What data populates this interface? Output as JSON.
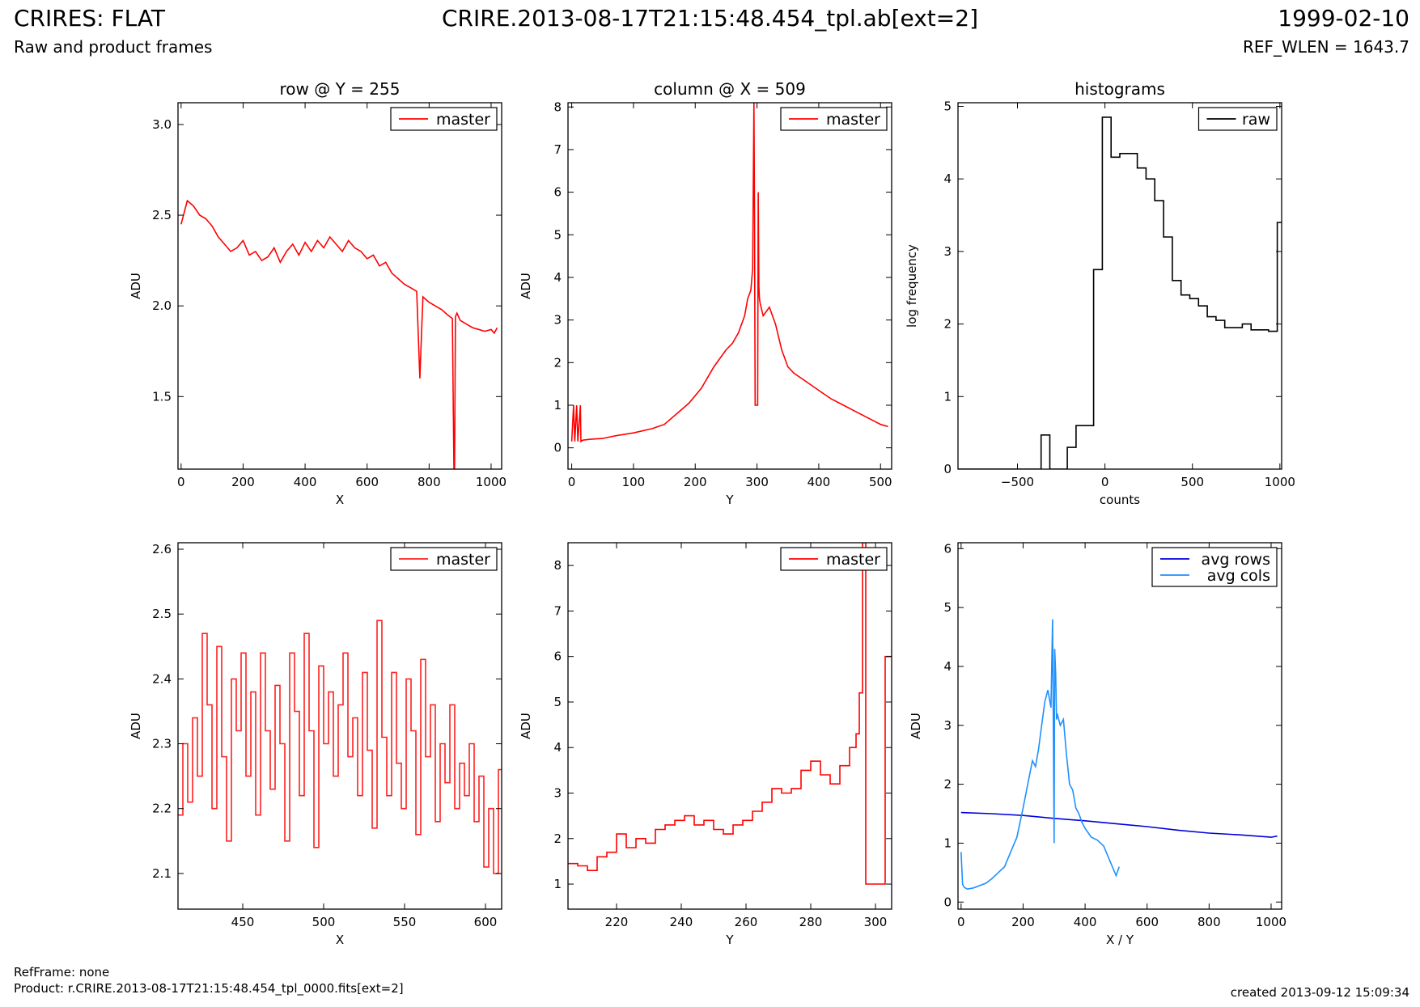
{
  "header": {
    "left_title": "CRIRES: FLAT",
    "left_subtitle": "Raw and product frames",
    "center_title": "CRIRE.2013-08-17T21:15:48.454_tpl.ab[ext=2]",
    "right_title": "1999-02-10",
    "right_subtitle": "REF_WLEN = 1643.7"
  },
  "footer": {
    "refframe": "RefFrame: none",
    "product": "Product: r.CRIRE.2013-08-17T21:15:48.454_tpl_0000.fits[ext=2]",
    "created": "created 2013-09-12 15:09:34"
  },
  "chart_data": [
    {
      "id": "row-full",
      "type": "line",
      "title": "row @ Y = 255",
      "xlabel": "X",
      "ylabel": "ADU",
      "xlim": [
        -10,
        1034
      ],
      "ylim": [
        1.1,
        3.12
      ],
      "xticks": [
        0,
        200,
        400,
        600,
        800,
        1000
      ],
      "yticks": [
        1.5,
        2.0,
        2.5,
        3.0
      ],
      "ytick_labels": [
        "1.5",
        "2.0",
        "2.5",
        "3.0"
      ],
      "legend_position": "top-right",
      "series": [
        {
          "name": "master",
          "color": "#ff0000",
          "x": [
            0,
            20,
            40,
            60,
            80,
            100,
            120,
            140,
            160,
            180,
            200,
            220,
            240,
            260,
            280,
            300,
            320,
            340,
            360,
            380,
            400,
            420,
            440,
            460,
            480,
            500,
            520,
            540,
            560,
            580,
            600,
            620,
            640,
            660,
            680,
            700,
            720,
            740,
            760,
            770,
            780,
            800,
            820,
            840,
            860,
            875,
            880,
            882,
            885,
            890,
            900,
            920,
            940,
            960,
            980,
            1000,
            1010,
            1020
          ],
          "y": [
            2.45,
            2.58,
            2.55,
            2.5,
            2.48,
            2.44,
            2.38,
            2.34,
            2.3,
            2.32,
            2.36,
            2.28,
            2.3,
            2.25,
            2.27,
            2.32,
            2.24,
            2.3,
            2.34,
            2.28,
            2.35,
            2.3,
            2.36,
            2.32,
            2.38,
            2.34,
            2.3,
            2.36,
            2.32,
            2.3,
            2.26,
            2.28,
            2.22,
            2.24,
            2.18,
            2.15,
            2.12,
            2.1,
            2.08,
            1.6,
            2.05,
            2.02,
            2.0,
            1.98,
            1.95,
            1.93,
            1.1,
            1.1,
            1.94,
            1.96,
            1.92,
            1.9,
            1.88,
            1.87,
            1.86,
            1.87,
            1.85,
            1.88
          ]
        }
      ]
    },
    {
      "id": "col-full",
      "type": "line",
      "title": "column @ X = 509",
      "xlabel": "Y",
      "ylabel": "ADU",
      "xlim": [
        -6,
        518
      ],
      "ylim": [
        -0.5,
        8.1
      ],
      "xticks": [
        0,
        100,
        200,
        300,
        400,
        500
      ],
      "yticks": [
        0,
        1,
        2,
        3,
        4,
        5,
        6,
        7,
        8
      ],
      "legend_position": "top-right",
      "series": [
        {
          "name": "master",
          "color": "#ff0000",
          "x": [
            0,
            3,
            5,
            8,
            10,
            14,
            15,
            18,
            30,
            50,
            70,
            100,
            130,
            150,
            170,
            190,
            210,
            230,
            250,
            260,
            270,
            280,
            285,
            290,
            293,
            295,
            296,
            297,
            298,
            299,
            300,
            301,
            302,
            303,
            304,
            305,
            310,
            320,
            330,
            340,
            350,
            360,
            380,
            400,
            420,
            440,
            460,
            480,
            500,
            512
          ],
          "y": [
            0.15,
            1.0,
            0.15,
            1.0,
            0.15,
            1.0,
            0.15,
            0.18,
            0.2,
            0.22,
            0.28,
            0.35,
            0.45,
            0.55,
            0.8,
            1.05,
            1.4,
            1.9,
            2.3,
            2.45,
            2.7,
            3.1,
            3.5,
            3.7,
            4.2,
            8.1,
            5.5,
            1.0,
            1.0,
            1.0,
            1.0,
            1.0,
            6.0,
            3.8,
            3.5,
            3.4,
            3.1,
            3.3,
            2.9,
            2.3,
            1.9,
            1.75,
            1.55,
            1.35,
            1.15,
            1.0,
            0.85,
            0.7,
            0.55,
            0.5
          ]
        }
      ]
    },
    {
      "id": "hist",
      "type": "line",
      "title": "histograms",
      "xlabel": "counts",
      "ylabel": "log frequency",
      "xlim": [
        -840,
        1010
      ],
      "ylim": [
        0,
        5.05
      ],
      "xticks": [
        -500,
        0,
        500,
        1000
      ],
      "xtick_labels": [
        "−500",
        "0",
        "500",
        "1000"
      ],
      "yticks": [
        0,
        1,
        2,
        3,
        4,
        5
      ],
      "legend_position": "top-right",
      "series": [
        {
          "name": "raw",
          "color": "#000000",
          "step": true,
          "x": [
            -840,
            -365,
            -315,
            -265,
            -215,
            -165,
            -65,
            -15,
            35,
            85,
            135,
            185,
            235,
            285,
            335,
            385,
            435,
            485,
            535,
            585,
            635,
            685,
            735,
            785,
            835,
            885,
            935,
            985,
            1010
          ],
          "y": [
            0,
            0.47,
            0,
            0,
            0.3,
            0.6,
            2.75,
            4.85,
            4.3,
            4.35,
            4.35,
            4.15,
            4.0,
            3.7,
            3.2,
            2.6,
            2.4,
            2.35,
            2.25,
            2.1,
            2.05,
            1.95,
            1.95,
            2.0,
            1.92,
            1.92,
            1.9,
            3.4,
            3.4
          ]
        }
      ]
    },
    {
      "id": "row-zoom",
      "type": "line",
      "title": "",
      "xlabel": "X",
      "ylabel": "ADU",
      "xlim": [
        410,
        610
      ],
      "ylim": [
        2.045,
        2.61
      ],
      "xticks": [
        450,
        500,
        550,
        600
      ],
      "yticks": [
        2.1,
        2.2,
        2.3,
        2.4,
        2.5,
        2.6
      ],
      "ytick_labels": [
        "2.1",
        "2.2",
        "2.3",
        "2.4",
        "2.5",
        "2.6"
      ],
      "legend_position": "top-right",
      "series": [
        {
          "name": "master",
          "color": "#ff2020",
          "step": true,
          "x": [
            410,
            413,
            416,
            419,
            422,
            425,
            428,
            431,
            434,
            437,
            440,
            443,
            446,
            449,
            452,
            455,
            458,
            461,
            464,
            467,
            470,
            473,
            476,
            479,
            482,
            485,
            488,
            491,
            494,
            497,
            500,
            503,
            506,
            509,
            512,
            515,
            518,
            521,
            524,
            527,
            530,
            533,
            536,
            539,
            542,
            545,
            548,
            551,
            554,
            557,
            560,
            563,
            566,
            569,
            572,
            575,
            578,
            581,
            584,
            587,
            590,
            593,
            596,
            599,
            602,
            605,
            608,
            610
          ],
          "y": [
            2.19,
            2.3,
            2.21,
            2.34,
            2.25,
            2.47,
            2.36,
            2.2,
            2.45,
            2.28,
            2.15,
            2.4,
            2.32,
            2.44,
            2.25,
            2.38,
            2.19,
            2.44,
            2.32,
            2.23,
            2.39,
            2.3,
            2.15,
            2.44,
            2.35,
            2.22,
            2.47,
            2.32,
            2.14,
            2.42,
            2.3,
            2.38,
            2.25,
            2.36,
            2.44,
            2.28,
            2.34,
            2.22,
            2.41,
            2.29,
            2.17,
            2.49,
            2.31,
            2.22,
            2.41,
            2.27,
            2.2,
            2.4,
            2.32,
            2.16,
            2.43,
            2.28,
            2.36,
            2.18,
            2.3,
            2.24,
            2.36,
            2.2,
            2.27,
            2.22,
            2.3,
            2.18,
            2.25,
            2.11,
            2.2,
            2.1,
            2.26,
            2.26
          ]
        }
      ]
    },
    {
      "id": "col-zoom",
      "type": "line",
      "title": "",
      "xlabel": "Y",
      "ylabel": "ADU",
      "xlim": [
        205,
        305
      ],
      "ylim": [
        0.45,
        8.5
      ],
      "xticks": [
        220,
        240,
        260,
        280,
        300
      ],
      "yticks": [
        1,
        2,
        3,
        4,
        5,
        6,
        7,
        8
      ],
      "legend_position": "top-right",
      "series": [
        {
          "name": "master",
          "color": "#ff0000",
          "step": true,
          "x": [
            205,
            208,
            211,
            214,
            217,
            220,
            223,
            226,
            229,
            232,
            235,
            238,
            241,
            244,
            247,
            250,
            253,
            256,
            259,
            262,
            265,
            268,
            271,
            274,
            277,
            280,
            283,
            286,
            289,
            292,
            294,
            295,
            296,
            297,
            300,
            303,
            304,
            305
          ],
          "y": [
            1.45,
            1.4,
            1.3,
            1.6,
            1.7,
            2.1,
            1.8,
            2.0,
            1.9,
            2.2,
            2.3,
            2.4,
            2.5,
            2.3,
            2.4,
            2.2,
            2.1,
            2.3,
            2.4,
            2.6,
            2.8,
            3.1,
            3.0,
            3.1,
            3.5,
            3.7,
            3.4,
            3.2,
            3.6,
            4.0,
            4.3,
            5.2,
            8.5,
            1.0,
            1.0,
            6.0,
            6.0,
            6.0
          ]
        }
      ]
    },
    {
      "id": "avg",
      "type": "line",
      "title": "",
      "xlabel": "X / Y",
      "ylabel": "ADU",
      "xlim": [
        -10,
        1034
      ],
      "ylim": [
        -0.12,
        6.1
      ],
      "xticks": [
        0,
        200,
        400,
        600,
        800,
        1000
      ],
      "yticks": [
        0,
        1,
        2,
        3,
        4,
        5,
        6
      ],
      "legend_position": "top-right",
      "series": [
        {
          "name": "avg rows",
          "color": "#0000dd",
          "x": [
            0,
            100,
            200,
            300,
            400,
            500,
            600,
            700,
            800,
            900,
            1000,
            1020
          ],
          "y": [
            1.52,
            1.5,
            1.47,
            1.42,
            1.38,
            1.33,
            1.28,
            1.22,
            1.17,
            1.14,
            1.1,
            1.12
          ]
        },
        {
          "name": "avg cols",
          "color": "#1e90ff",
          "x": [
            0,
            5,
            10,
            20,
            40,
            60,
            80,
            100,
            120,
            140,
            160,
            180,
            200,
            215,
            230,
            240,
            250,
            260,
            270,
            280,
            290,
            295,
            300,
            302,
            305,
            308,
            310,
            320,
            330,
            340,
            350,
            360,
            370,
            380,
            390,
            400,
            420,
            440,
            460,
            480,
            500,
            510
          ],
          "y": [
            0.85,
            0.3,
            0.25,
            0.22,
            0.24,
            0.28,
            0.32,
            0.4,
            0.5,
            0.6,
            0.85,
            1.1,
            1.6,
            2.0,
            2.4,
            2.3,
            2.6,
            3.0,
            3.4,
            3.6,
            3.3,
            4.8,
            1.0,
            4.3,
            3.9,
            3.1,
            3.2,
            3.0,
            3.1,
            2.5,
            2.0,
            1.9,
            1.6,
            1.5,
            1.35,
            1.25,
            1.1,
            1.05,
            0.95,
            0.7,
            0.45,
            0.6
          ]
        }
      ]
    }
  ]
}
